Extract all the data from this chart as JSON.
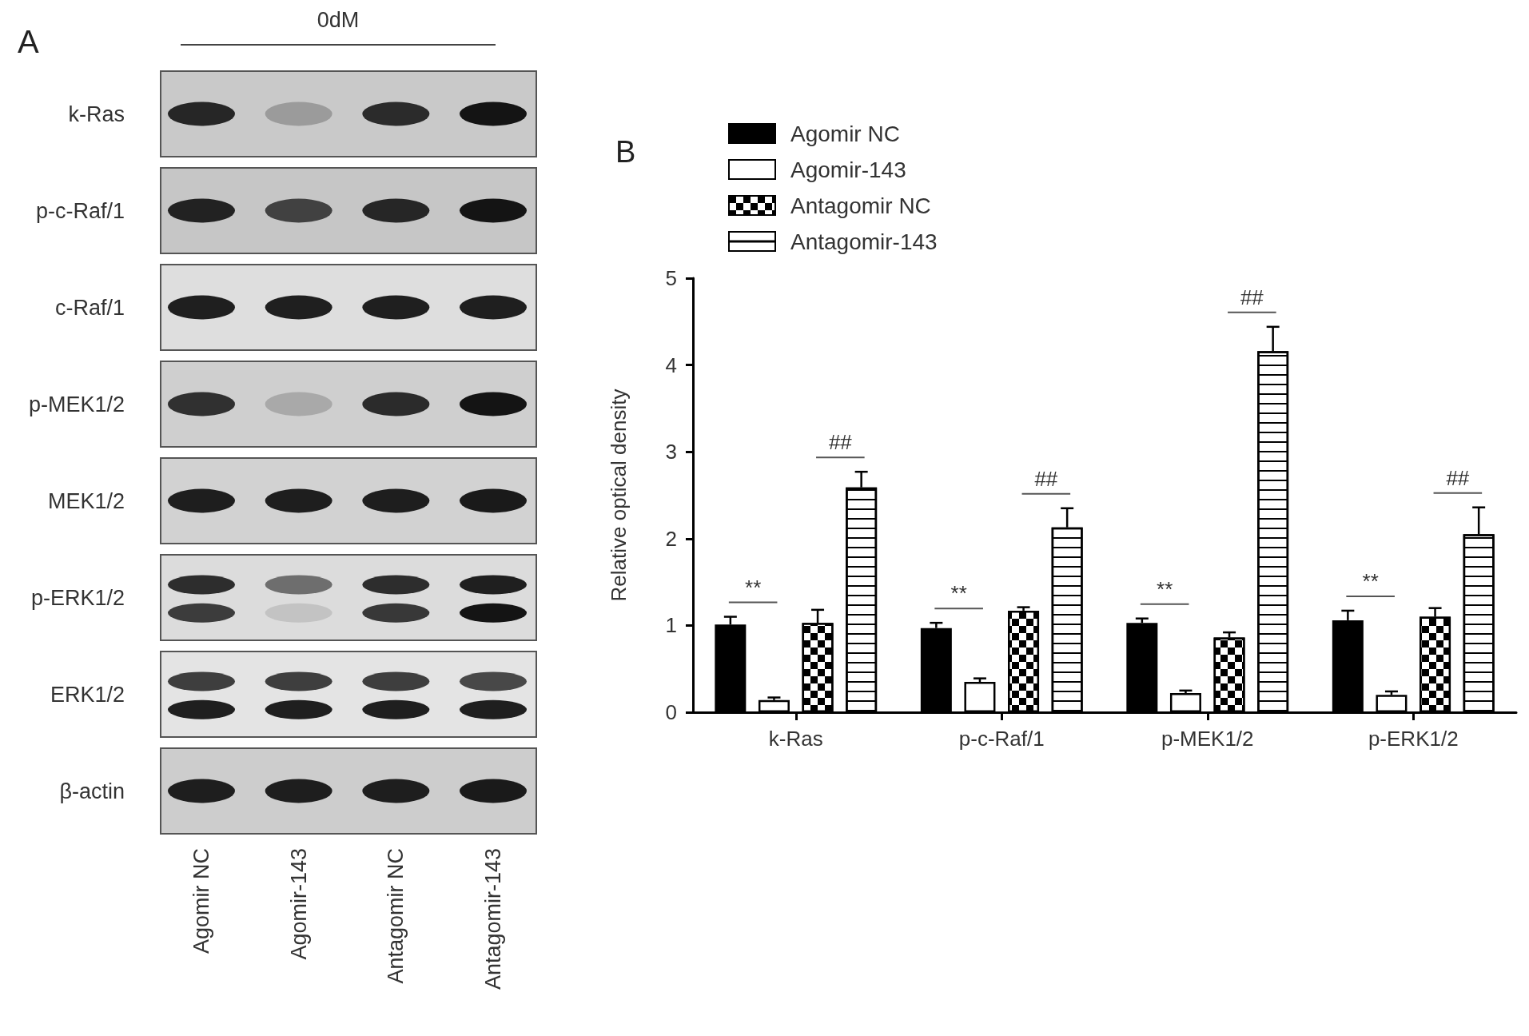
{
  "chart_data": [
    {
      "type": "other",
      "title": "A",
      "subtitle": "0dM",
      "categories": [
        "Agomir NC",
        "Agomir-143",
        "Antagomir NC",
        "Antagomir-143"
      ],
      "annotations": [
        "k-Ras",
        "p-c-Raf/1",
        "c-Raf/1",
        "p-MEK1/2",
        "MEK1/2",
        "p-ERK1/2",
        "ERK1/2",
        "β-actin"
      ]
    },
    {
      "type": "bar",
      "title": "B",
      "ylabel": "Relative optical density",
      "categories": [
        "k-Ras",
        "p-c-Raf/1",
        "p-MEK1/2",
        "p-ERK1/2"
      ],
      "series": [
        {
          "name": "Agomir NC",
          "color": "#000000",
          "values": [
            1.01,
            0.97,
            1.03,
            1.06
          ],
          "errors": [
            [
              1.01,
              1.1
            ],
            [
              0.97,
              1.03
            ],
            [
              1.03,
              1.08
            ],
            [
              1.06,
              1.17
            ]
          ]
        },
        {
          "name": "Agomir-143",
          "color": "#ffffff",
          "values": [
            0.14,
            0.35,
            0.22,
            0.2
          ],
          "errors": [
            [
              0.14,
              0.17
            ],
            [
              0.35,
              0.39
            ],
            [
              0.22,
              0.25
            ],
            [
              0.2,
              0.24
            ]
          ]
        },
        {
          "name": "Antagomir NC",
          "color": "#000000",
          "values": [
            1.03,
            1.17,
            0.86,
            1.1
          ],
          "errors": [
            [
              1.03,
              1.18
            ],
            [
              1.17,
              1.21
            ],
            [
              0.86,
              0.92
            ],
            [
              1.1,
              1.2
            ]
          ]
        },
        {
          "name": "Antagomir-143",
          "color": "#ffffff",
          "values": [
            2.59,
            2.13,
            4.16,
            2.05
          ],
          "errors": [
            [
              2.59,
              2.77
            ],
            [
              2.13,
              2.35
            ],
            [
              4.16,
              4.44
            ],
            [
              2.05,
              2.36
            ]
          ]
        }
      ],
      "ylim": [
        0,
        5
      ],
      "yticks": [
        0,
        1,
        2,
        3,
        4,
        5
      ],
      "grid": false,
      "legend": "top left",
      "annotations": [
        "**",
        "##",
        "**",
        "##",
        "**",
        "##",
        "**",
        "##"
      ]
    }
  ]
}
